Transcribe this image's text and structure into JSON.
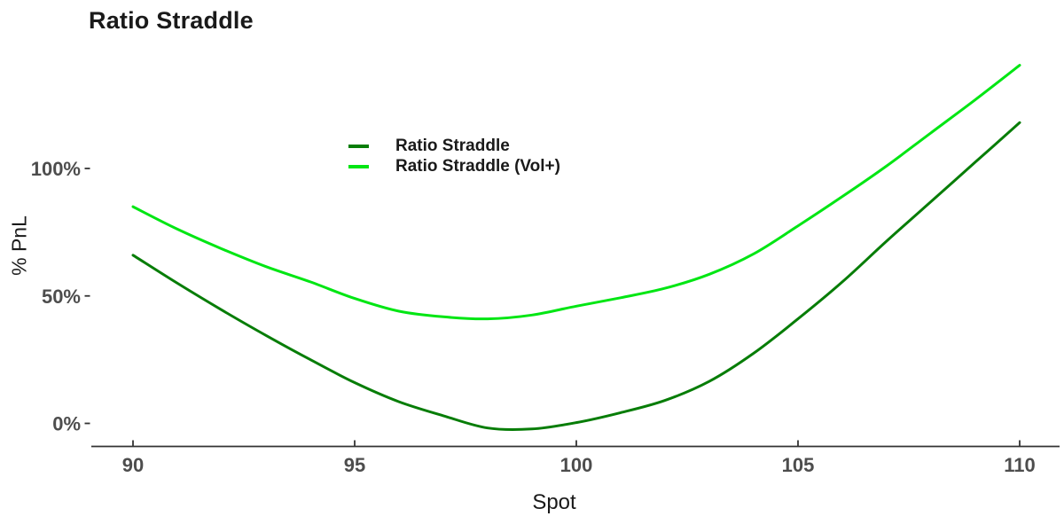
{
  "title": "Ratio Straddle",
  "x_axis": {
    "label": "Spot",
    "tick_labels": [
      "90",
      "95",
      "100",
      "105",
      "110"
    ]
  },
  "y_axis": {
    "label": "% PnL",
    "tick_labels": [
      "0%",
      "50%",
      "100%"
    ]
  },
  "legend": {
    "items": [
      {
        "label": "Ratio Straddle",
        "color": "#077d07"
      },
      {
        "label": "Ratio Straddle (Vol+)",
        "color": "#00e613"
      }
    ]
  },
  "colors": {
    "axis": "#333333",
    "tick_label": "#4d4d4d",
    "text": "#1a1a1a",
    "series_dark": "#077d07",
    "series_bright": "#00e613"
  },
  "chart_data": {
    "type": "line",
    "title": "Ratio Straddle",
    "xlabel": "Spot",
    "ylabel": "% PnL",
    "xlim": [
      90,
      110
    ],
    "ylim": [
      -8,
      148
    ],
    "x_ticks": [
      90,
      95,
      100,
      105,
      110
    ],
    "y_ticks": [
      {
        "value": 0,
        "label": "0%"
      },
      {
        "value": 50,
        "label": "50%"
      },
      {
        "value": 100,
        "label": "100%"
      }
    ],
    "grid": false,
    "legend_position": "upper-left-inside",
    "x": [
      90,
      91,
      92,
      93,
      94,
      95,
      96,
      97,
      98,
      99,
      100,
      101,
      102,
      103,
      104,
      105,
      106,
      107,
      108,
      109,
      110
    ],
    "series": [
      {
        "name": "Ratio Straddle",
        "color": "#077d07",
        "values": [
          66,
          55,
          44.5,
          34.5,
          25,
          16,
          8.5,
          3,
          -1.8,
          -2.2,
          0.3,
          4.2,
          9,
          16.5,
          27.5,
          41,
          55.5,
          71.5,
          87,
          102.5,
          118
        ]
      },
      {
        "name": "Ratio Straddle (Vol+)",
        "color": "#00e613",
        "values": [
          85,
          76.2,
          68.5,
          61.5,
          55.5,
          49,
          44,
          41.8,
          41,
          42.5,
          46,
          49.3,
          53,
          58.5,
          66.5,
          77.5,
          89,
          101,
          114,
          127,
          140.5
        ]
      }
    ]
  }
}
